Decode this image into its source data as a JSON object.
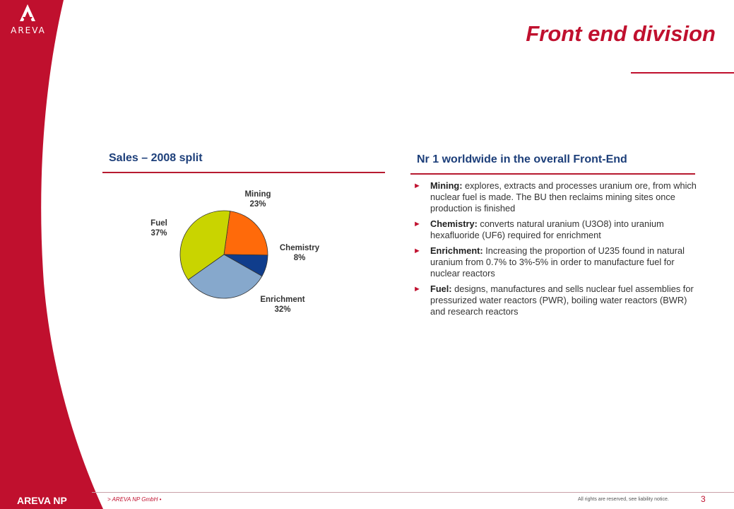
{
  "header": {
    "logo_text": "AREVA",
    "title": "Front end division"
  },
  "left_panel": {
    "heading": "Sales – 2008 split"
  },
  "chart_data": {
    "type": "pie",
    "title": "",
    "slices": [
      {
        "name": "Mining",
        "value": 23,
        "label": "23%",
        "color": "#ff6a0a"
      },
      {
        "name": "Chemistry",
        "value": 8,
        "label": "8%",
        "color": "#103d8c"
      },
      {
        "name": "Enrichment",
        "value": 32,
        "label": "32%",
        "color": "#86a8cc"
      },
      {
        "name": "Fuel",
        "value": 37,
        "label": "37%",
        "color": "#c9d400"
      }
    ]
  },
  "right_panel": {
    "heading": "Nr 1 worldwide in the overall Front-End",
    "bullets": [
      {
        "term": "Mining:",
        "text": " explores, extracts and processes uranium ore, from which nuclear fuel is made. The BU then reclaims mining sites once production is finished"
      },
      {
        "term": "Chemistry:",
        "text": " converts natural uranium (U3O8) into uranium hexafluoride (UF6) required for enrichment"
      },
      {
        "term": "Enrichment:",
        "text": " Increasing the proportion of U235 found in natural uranium from 0.7% to 3%-5% in order to manufacture fuel for nuclear reactors"
      },
      {
        "term": "Fuel:",
        "text": " designs, manufactures and sells nuclear fuel assemblies for pressurized water reactors (PWR), boiling water reactors (BWR) and research reactors"
      }
    ]
  },
  "footer": {
    "brand": "AREVA NP",
    "company": "> AREVA NP GmbH •",
    "legal": "All rights are reserved, see liability notice.",
    "page_number": "3"
  },
  "colors": {
    "brand_red": "#c0102e",
    "heading_blue": "#1d3f7a"
  }
}
